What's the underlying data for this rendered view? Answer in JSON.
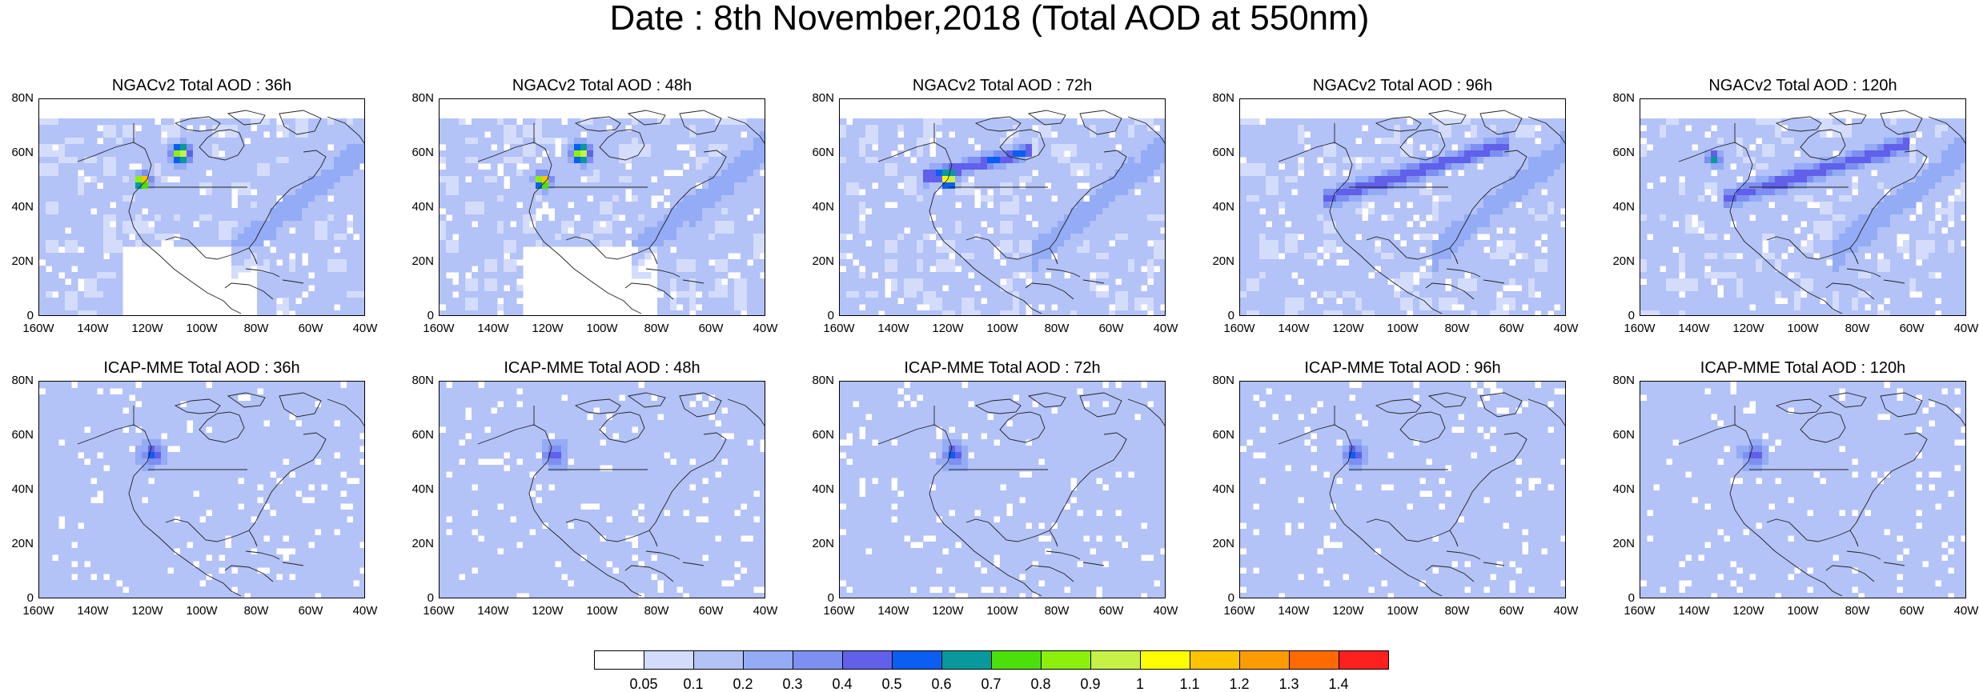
{
  "title": "Date : 8th November,2018 (Total AOD at 550nm)",
  "axes": {
    "lat_ticks": [
      "80N",
      "60N",
      "40N",
      "20N",
      "0"
    ],
    "lon_ticks": [
      "160W",
      "140W",
      "120W",
      "100W",
      "80W",
      "60W",
      "40W"
    ],
    "lon_range": [
      -160,
      -40
    ],
    "lat_range": [
      0,
      80
    ]
  },
  "panels": [
    {
      "title": "NGACv2 Total AOD : 36h",
      "model": "NGACv2",
      "lead": "36h"
    },
    {
      "title": "NGACv2 Total AOD : 48h",
      "model": "NGACv2",
      "lead": "48h"
    },
    {
      "title": "NGACv2 Total AOD : 72h",
      "model": "NGACv2",
      "lead": "72h"
    },
    {
      "title": "NGACv2 Total AOD : 96h",
      "model": "NGACv2",
      "lead": "96h"
    },
    {
      "title": "NGACv2 Total AOD : 120h",
      "model": "NGACv2",
      "lead": "120h"
    },
    {
      "title": "ICAP-MME Total AOD : 36h",
      "model": "ICAP-MME",
      "lead": "36h"
    },
    {
      "title": "ICAP-MME Total AOD : 48h",
      "model": "ICAP-MME",
      "lead": "48h"
    },
    {
      "title": "ICAP-MME Total AOD : 72h",
      "model": "ICAP-MME",
      "lead": "72h"
    },
    {
      "title": "ICAP-MME Total AOD : 96h",
      "model": "ICAP-MME",
      "lead": "96h"
    },
    {
      "title": "ICAP-MME Total AOD : 120h",
      "model": "ICAP-MME",
      "lead": "120h"
    }
  ],
  "colorbar": {
    "labels": [
      "0.05",
      "0.1",
      "0.2",
      "0.3",
      "0.4",
      "0.5",
      "0.6",
      "0.7",
      "0.8",
      "0.9",
      "1",
      "1.1",
      "1.2",
      "1.3",
      "1.4"
    ],
    "colors": [
      "#ffffff",
      "#d4dcfb",
      "#b3c2f7",
      "#94abf5",
      "#7d8ff0",
      "#6060eb",
      "#0a5ef2",
      "#08999e",
      "#4be00a",
      "#8cf00a",
      "#c6f247",
      "#fefe00",
      "#fec400",
      "#fe9b00",
      "#fe6a00",
      "#fe1f1f"
    ]
  }
}
